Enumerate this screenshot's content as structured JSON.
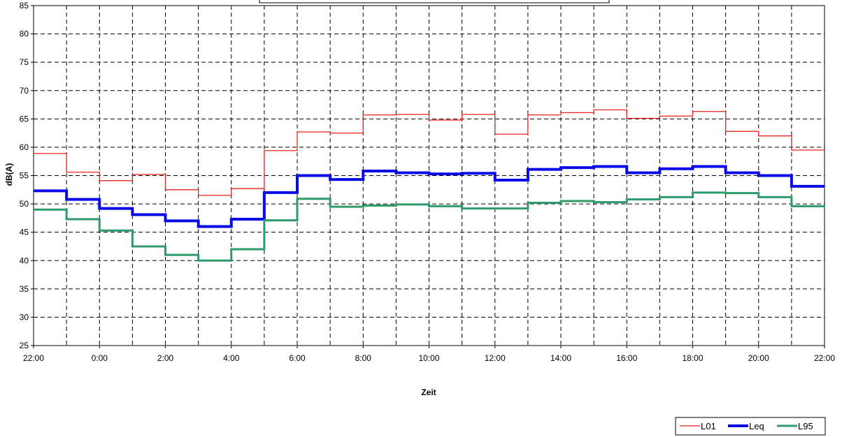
{
  "chart_data": {
    "type": "line",
    "step": true,
    "xlabel": "Zeit",
    "ylabel": "dB(A)",
    "ylim": [
      25,
      85
    ],
    "ytick_step": 5,
    "xlim_hours": [
      0,
      24
    ],
    "x_tick_labels": [
      "22:00",
      "0:00",
      "2:00",
      "4:00",
      "6:00",
      "8:00",
      "10:00",
      "12:00",
      "14:00",
      "16:00",
      "18:00",
      "20:00",
      "22:00"
    ],
    "grid": true,
    "legend_position": "bottom-right",
    "x": [
      "22:00",
      "23:00",
      "0:00",
      "1:00",
      "2:00",
      "3:00",
      "4:00",
      "5:00",
      "6:00",
      "7:00",
      "8:00",
      "9:00",
      "10:00",
      "11:00",
      "12:00",
      "13:00",
      "14:00",
      "15:00",
      "16:00",
      "17:00",
      "18:00",
      "19:00",
      "20:00",
      "21:00"
    ],
    "series": [
      {
        "name": "L01",
        "color": "#e8231e",
        "width": 1.3,
        "values": [
          58.9,
          55.6,
          54.1,
          55.2,
          52.5,
          51.5,
          52.7,
          59.4,
          62.7,
          62.5,
          65.7,
          65.8,
          64.8,
          65.8,
          62.3,
          65.7,
          66.1,
          66.6,
          65.1,
          65.5,
          66.3,
          62.8,
          62.0,
          59.5
        ]
      },
      {
        "name": "Leq",
        "color": "#0a0ae6",
        "width": 4,
        "values": [
          52.3,
          50.8,
          49.2,
          48.1,
          47.0,
          46.0,
          47.3,
          52.0,
          55.0,
          54.3,
          55.8,
          55.5,
          55.3,
          55.4,
          54.2,
          56.1,
          56.4,
          56.6,
          55.5,
          56.2,
          56.6,
          55.5,
          55.0,
          53.1
        ]
      },
      {
        "name": "L95",
        "color": "#2f9a6a",
        "width": 3,
        "values": [
          49.0,
          47.3,
          45.3,
          42.5,
          41.0,
          40.0,
          42.0,
          47.1,
          50.9,
          49.5,
          49.7,
          49.9,
          49.6,
          49.2,
          49.2,
          50.2,
          50.5,
          50.3,
          50.8,
          51.2,
          52.0,
          51.9,
          51.2,
          49.6
        ]
      }
    ]
  }
}
